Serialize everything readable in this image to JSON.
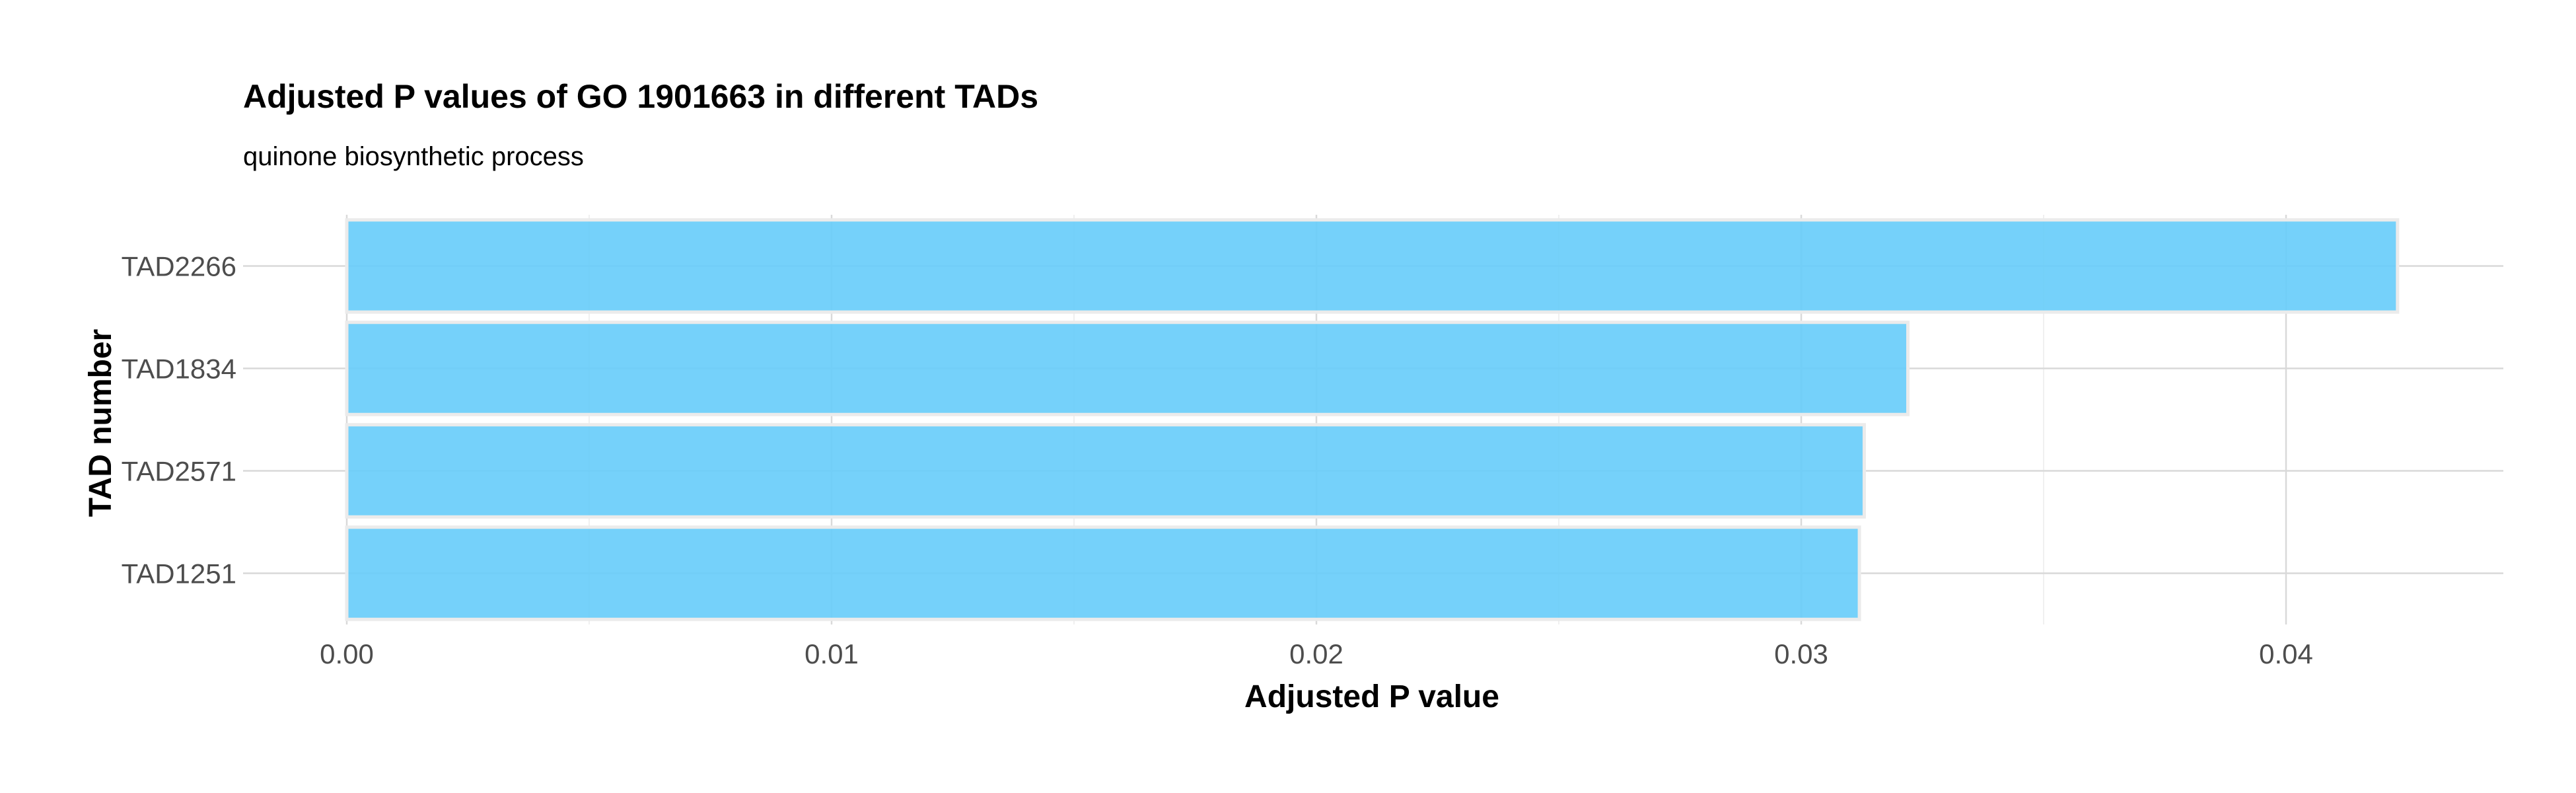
{
  "chart_data": {
    "type": "bar",
    "orientation": "horizontal",
    "title": "Adjusted P values of GO 1901663 in different TADs",
    "subtitle": "quinone biosynthetic process",
    "xlabel": "Adjusted P value",
    "ylabel": "TAD number",
    "categories": [
      "TAD2266",
      "TAD1834",
      "TAD2571",
      "TAD1251"
    ],
    "values": [
      0.0423,
      0.0322,
      0.0313,
      0.0312
    ],
    "xlim": [
      0,
      0.0445
    ],
    "xticks": [
      {
        "value": 0,
        "label": "0.00"
      },
      {
        "value": 0.01,
        "label": "0.01"
      },
      {
        "value": 0.02,
        "label": "0.02"
      },
      {
        "value": 0.03,
        "label": "0.03"
      },
      {
        "value": 0.04,
        "label": "0.04"
      }
    ],
    "grid": true,
    "legend": "none",
    "bar_color": "#66ccfa"
  }
}
